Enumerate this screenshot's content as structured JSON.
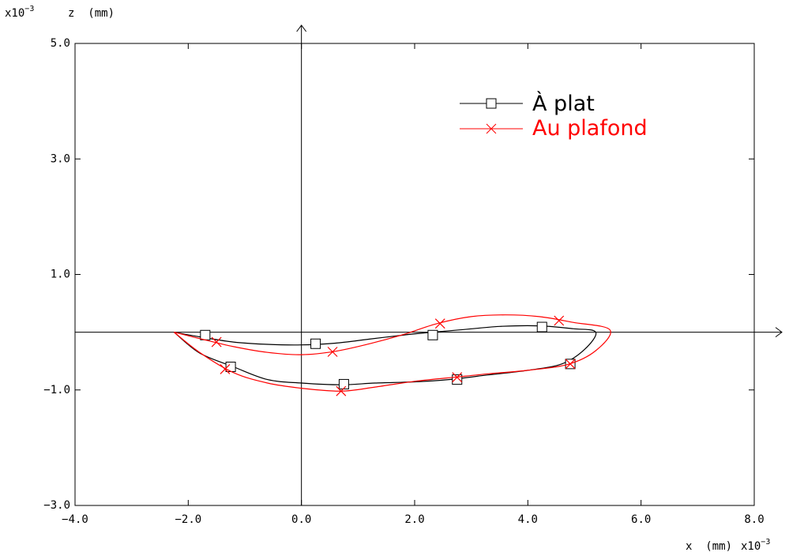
{
  "chart_data": {
    "type": "line",
    "xlabel": "x  (mm)",
    "x_multiplier": "x10",
    "x_multiplier_exp": "−3",
    "ylabel": "z  (mm)",
    "y_multiplier": "x10",
    "y_multiplier_exp": "−3",
    "xlim": [
      -4,
      8
    ],
    "ylim": [
      -3,
      5
    ],
    "x_ticks": [
      -4,
      -2,
      0,
      2,
      4,
      6,
      8
    ],
    "x_tick_labels": [
      "−4.0",
      "−2.0",
      "0.0",
      "2.0",
      "4.0",
      "6.0",
      "8.0"
    ],
    "y_ticks": [
      -3,
      -1,
      1,
      3,
      5
    ],
    "y_tick_labels": [
      "−3.0",
      "−1.0",
      "1.0",
      "3.0",
      "5.0"
    ],
    "legend_position": "top-right",
    "grid": false,
    "series": [
      {
        "name": "À plat",
        "color": "#000000",
        "marker": "square",
        "line": [
          [
            -2.25,
            0
          ],
          [
            -1.8,
            -0.08
          ],
          [
            -1.2,
            -0.17
          ],
          [
            -0.6,
            -0.21
          ],
          [
            0.0,
            -0.22
          ],
          [
            0.6,
            -0.19
          ],
          [
            1.2,
            -0.12
          ],
          [
            1.8,
            -0.05
          ],
          [
            2.2,
            -0.01
          ],
          [
            2.8,
            0.04
          ],
          [
            3.5,
            0.1
          ],
          [
            4.2,
            0.11
          ],
          [
            4.8,
            0.06
          ],
          [
            5.2,
            0.0
          ],
          [
            5.0,
            -0.3
          ],
          [
            4.6,
            -0.55
          ],
          [
            4.0,
            -0.66
          ],
          [
            3.3,
            -0.74
          ],
          [
            2.6,
            -0.82
          ],
          [
            2.0,
            -0.86
          ],
          [
            1.3,
            -0.88
          ],
          [
            0.7,
            -0.91
          ],
          [
            0.0,
            -0.88
          ],
          [
            -0.6,
            -0.82
          ],
          [
            -1.2,
            -0.6
          ],
          [
            -1.8,
            -0.36
          ],
          [
            -2.25,
            0
          ]
        ],
        "markers": [
          [
            -1.7,
            -0.05
          ],
          [
            0.25,
            -0.2
          ],
          [
            2.32,
            -0.05
          ],
          [
            4.25,
            0.09
          ],
          [
            4.75,
            -0.55
          ],
          [
            2.75,
            -0.82
          ],
          [
            0.75,
            -0.9
          ],
          [
            -1.25,
            -0.6
          ]
        ]
      },
      {
        "name": "Au plafond",
        "color": "#ff0000",
        "marker": "x",
        "line": [
          [
            -2.25,
            0
          ],
          [
            -1.8,
            -0.11
          ],
          [
            -1.2,
            -0.25
          ],
          [
            -0.6,
            -0.35
          ],
          [
            0.0,
            -0.39
          ],
          [
            0.6,
            -0.33
          ],
          [
            1.2,
            -0.2
          ],
          [
            1.8,
            -0.04
          ],
          [
            2.4,
            0.15
          ],
          [
            3.0,
            0.27
          ],
          [
            3.6,
            0.3
          ],
          [
            4.2,
            0.27
          ],
          [
            4.8,
            0.17
          ],
          [
            5.45,
            0.04
          ],
          [
            5.2,
            -0.32
          ],
          [
            4.7,
            -0.56
          ],
          [
            4.0,
            -0.66
          ],
          [
            3.3,
            -0.72
          ],
          [
            2.7,
            -0.78
          ],
          [
            2.0,
            -0.85
          ],
          [
            1.3,
            -0.95
          ],
          [
            0.7,
            -1.02
          ],
          [
            0.0,
            -0.97
          ],
          [
            -0.6,
            -0.88
          ],
          [
            -1.2,
            -0.7
          ],
          [
            -1.8,
            -0.35
          ],
          [
            -2.25,
            0
          ]
        ],
        "markers": [
          [
            -1.5,
            -0.17
          ],
          [
            0.55,
            -0.34
          ],
          [
            2.45,
            0.15
          ],
          [
            4.55,
            0.2
          ],
          [
            4.75,
            -0.55
          ],
          [
            2.75,
            -0.78
          ],
          [
            0.7,
            -1.02
          ],
          [
            -1.35,
            -0.64
          ]
        ]
      }
    ]
  }
}
